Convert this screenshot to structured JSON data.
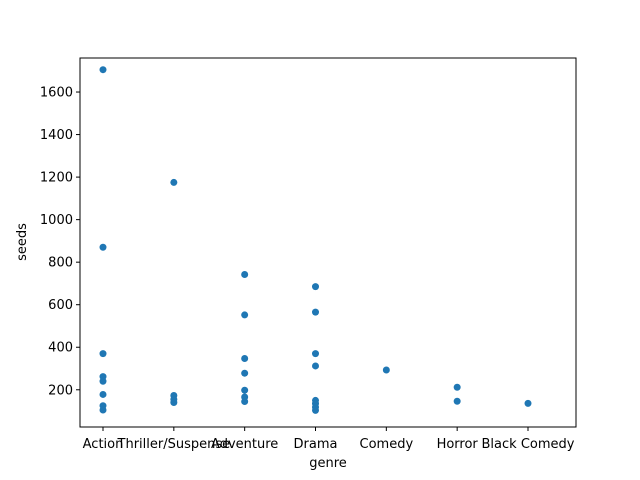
{
  "chart_data": {
    "type": "scatter",
    "title": "",
    "xlabel": "genre",
    "ylabel": "seeds",
    "categories": [
      "Action",
      "Thriller/Suspense",
      "Adventure",
      "Drama",
      "Comedy",
      "Horror",
      "Black Comedy"
    ],
    "ylim": [
      25,
      1760
    ],
    "yticks": [
      200,
      400,
      600,
      800,
      1000,
      1200,
      1400,
      1600
    ],
    "grid": false,
    "marker_color": "#1f77b4",
    "points": [
      {
        "genre": "Action",
        "seeds": 1705
      },
      {
        "genre": "Action",
        "seeds": 870
      },
      {
        "genre": "Action",
        "seeds": 370
      },
      {
        "genre": "Action",
        "seeds": 262
      },
      {
        "genre": "Action",
        "seeds": 240
      },
      {
        "genre": "Action",
        "seeds": 178
      },
      {
        "genre": "Action",
        "seeds": 125
      },
      {
        "genre": "Action",
        "seeds": 105
      },
      {
        "genre": "Thriller/Suspense",
        "seeds": 1175
      },
      {
        "genre": "Thriller/Suspense",
        "seeds": 173
      },
      {
        "genre": "Thriller/Suspense",
        "seeds": 155
      },
      {
        "genre": "Thriller/Suspense",
        "seeds": 140
      },
      {
        "genre": "Adventure",
        "seeds": 742
      },
      {
        "genre": "Adventure",
        "seeds": 552
      },
      {
        "genre": "Adventure",
        "seeds": 347
      },
      {
        "genre": "Adventure",
        "seeds": 278
      },
      {
        "genre": "Adventure",
        "seeds": 198
      },
      {
        "genre": "Adventure",
        "seeds": 166
      },
      {
        "genre": "Adventure",
        "seeds": 145
      },
      {
        "genre": "Drama",
        "seeds": 685
      },
      {
        "genre": "Drama",
        "seeds": 565
      },
      {
        "genre": "Drama",
        "seeds": 370
      },
      {
        "genre": "Drama",
        "seeds": 312
      },
      {
        "genre": "Drama",
        "seeds": 150
      },
      {
        "genre": "Drama",
        "seeds": 135
      },
      {
        "genre": "Drama",
        "seeds": 118
      },
      {
        "genre": "Drama",
        "seeds": 103
      },
      {
        "genre": "Comedy",
        "seeds": 293
      },
      {
        "genre": "Horror",
        "seeds": 212
      },
      {
        "genre": "Horror",
        "seeds": 146
      },
      {
        "genre": "Black Comedy",
        "seeds": 136
      }
    ]
  }
}
